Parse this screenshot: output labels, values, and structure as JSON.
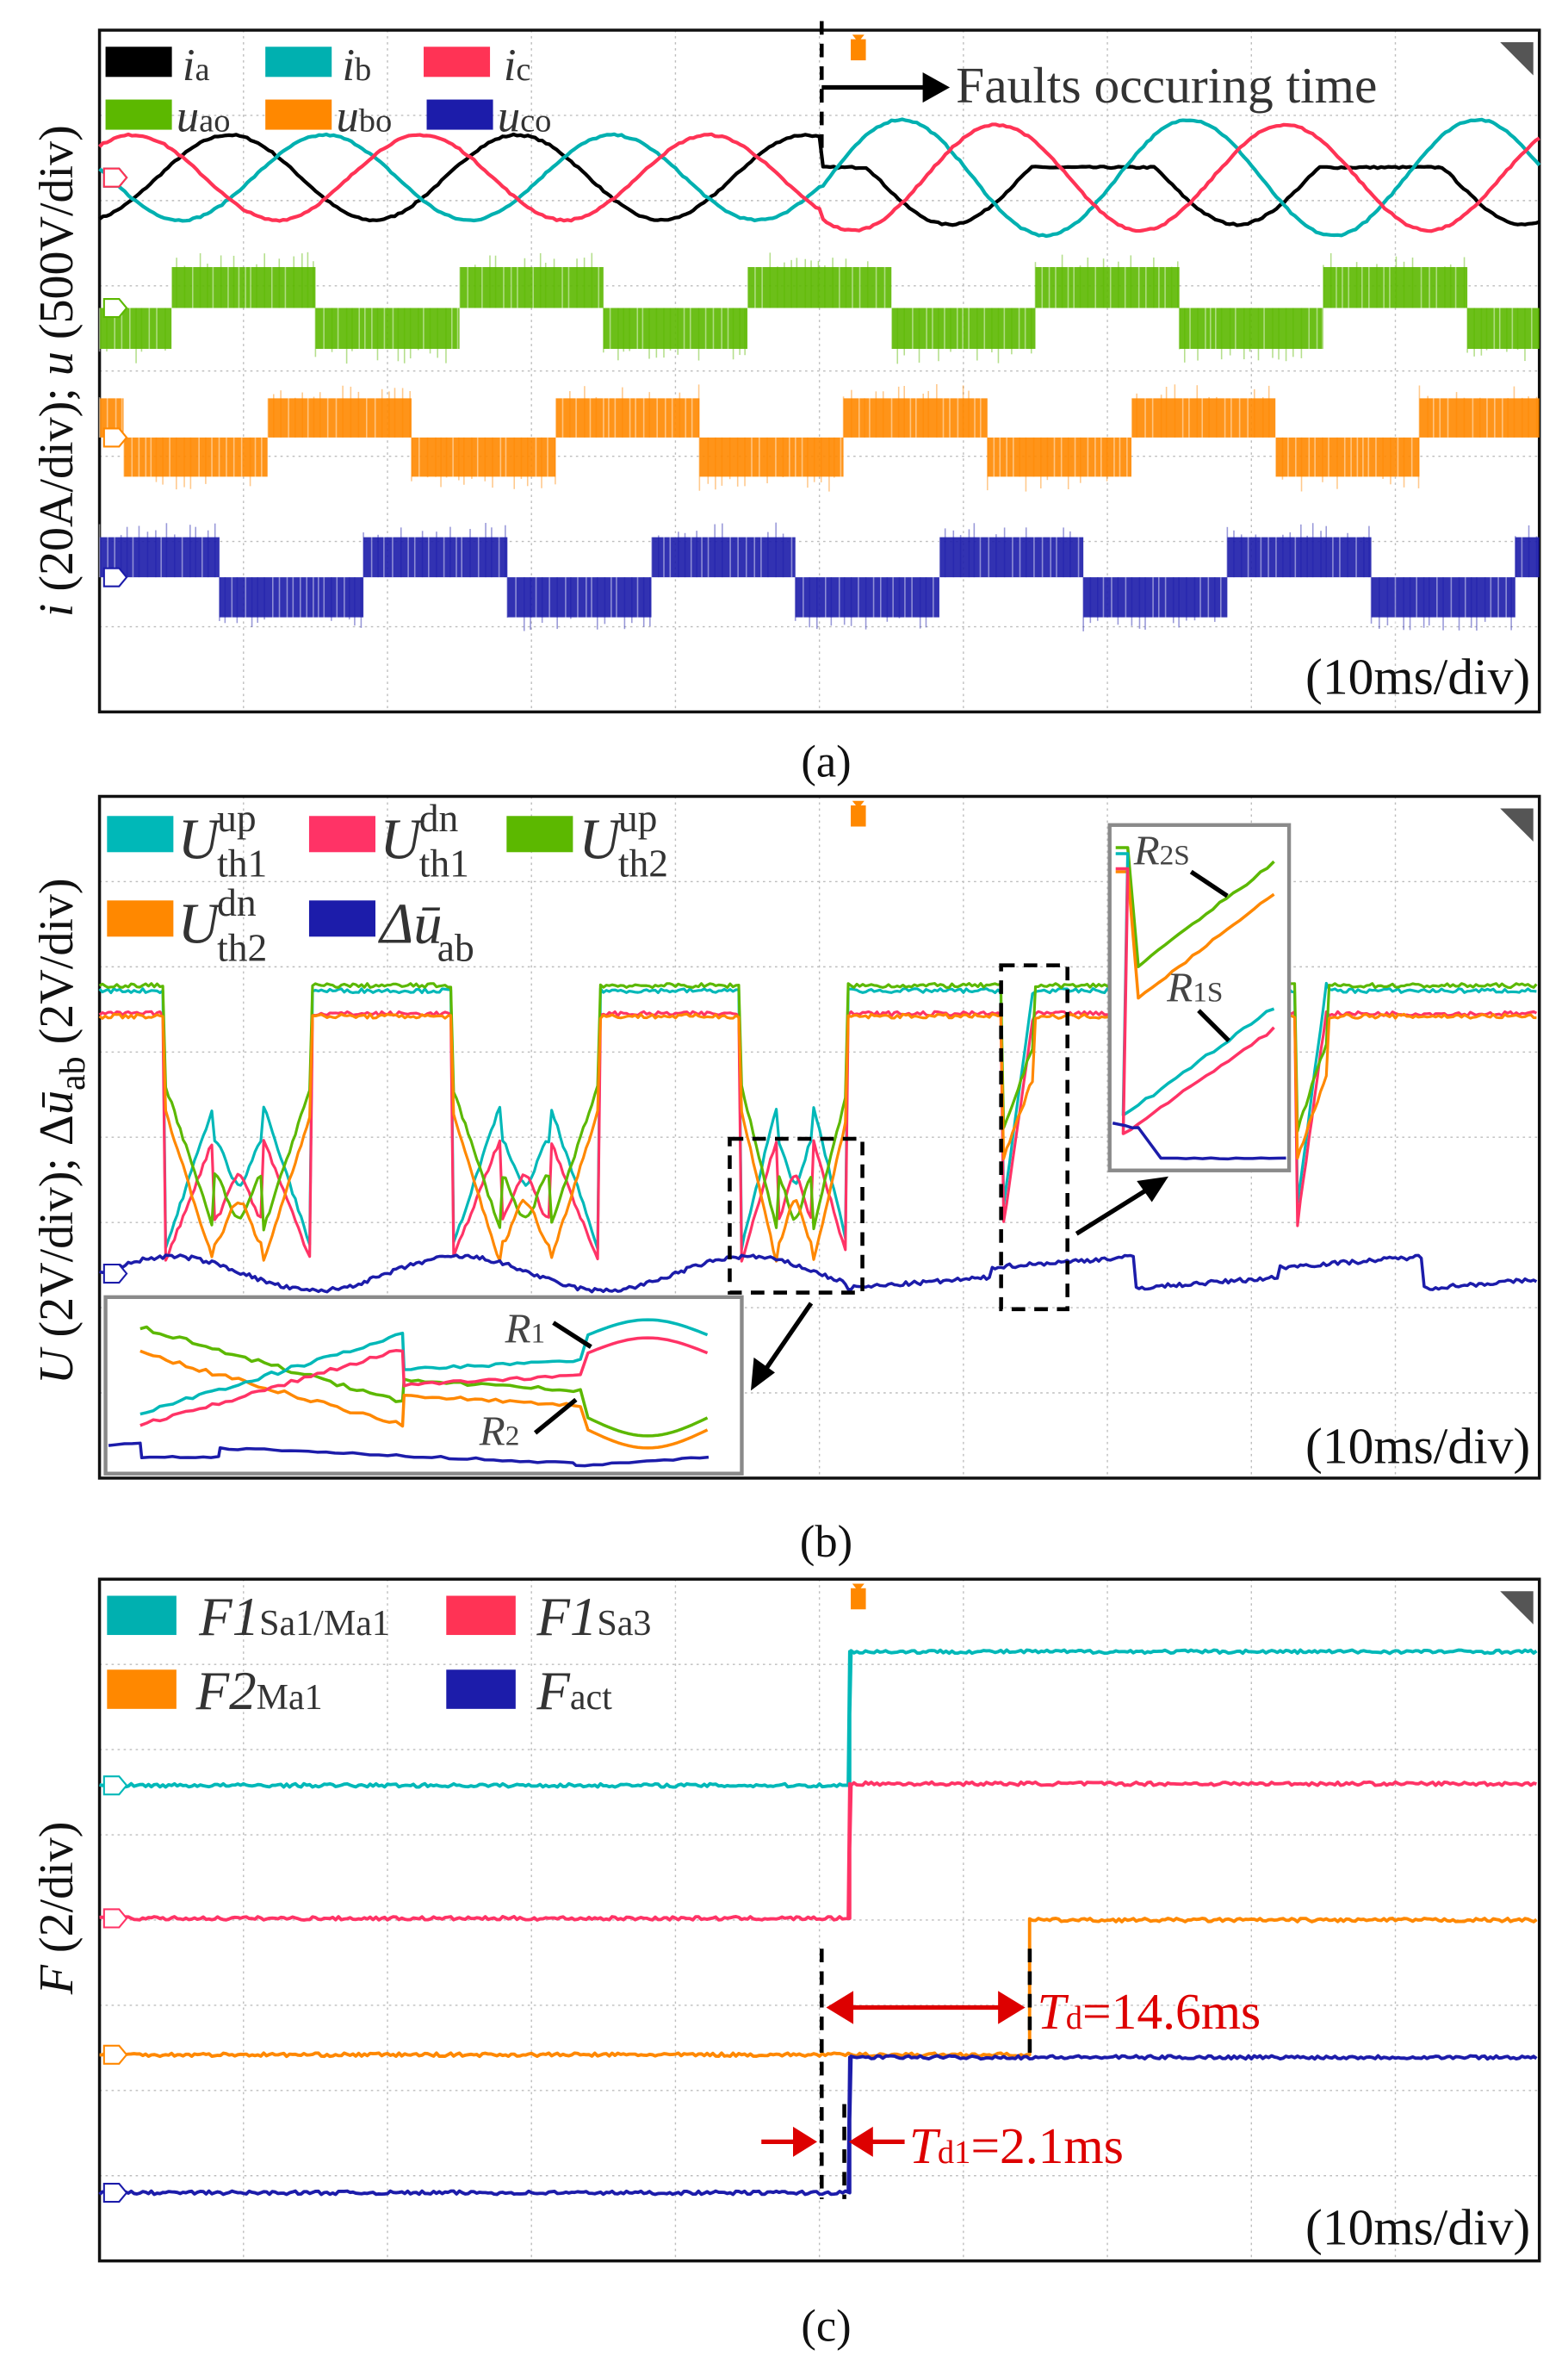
{
  "figure": {
    "captions": [
      "(a)",
      "(b)",
      "(c)"
    ],
    "timebase_label": "(10ms/div)"
  },
  "chart_data": [
    {
      "type": "line",
      "title": "(a)",
      "xlabel": "10ms/div",
      "xlim_ms": [
        0,
        100
      ],
      "ylim_div": [
        0,
        8
      ],
      "grid": true,
      "legend_position": "top-left",
      "ylabel": {
        "sym1": "i",
        "rest1": " (20A/div);  ",
        "sym2": "u",
        "rest2": " (500V/div)"
      },
      "annotation": {
        "text": "Faults occuring time",
        "time_ms": 50
      },
      "fault_time_ms": 50,
      "series": [
        {
          "name": "ia",
          "symbol": "i",
          "sub": "a",
          "color": "#000000",
          "kind": "sine",
          "offset_div": 6.27,
          "amplitude_div": 0.5,
          "period_ms": 20,
          "phase_ms": 4,
          "post_fault_clip_max_div": 0.12,
          "post_fault_amplitude_div": 0.55
        },
        {
          "name": "ib",
          "symbol": "i",
          "sub": "b",
          "color": "#00b0b0",
          "kind": "sine",
          "offset_div": 6.27,
          "amplitude_div": 0.5,
          "period_ms": 20,
          "phase_ms": 10.67,
          "post_fault_amplitude_div": 0.68
        },
        {
          "name": "ic",
          "symbol": "i",
          "sub": "c",
          "color": "#ff3355",
          "kind": "sine",
          "offset_div": 6.27,
          "amplitude_div": 0.5,
          "period_ms": 20,
          "phase_ms": 17.33,
          "post_fault_amplitude_div": 0.62
        },
        {
          "name": "uao",
          "symbol": "u",
          "sub": "ao",
          "color": "#5cb800",
          "kind": "pwm",
          "level_div": 4.74,
          "swing_div": 0.48,
          "period_ms": 20,
          "high_start_ms": 5
        },
        {
          "name": "ubo",
          "symbol": "u",
          "sub": "bo",
          "color": "#ff8800",
          "kind": "pwm",
          "level_div": 3.22,
          "swing_div": 0.46,
          "period_ms": 20,
          "high_start_ms": 11.67
        },
        {
          "name": "uco",
          "symbol": "u",
          "sub": "co",
          "color": "#1c1caa",
          "kind": "pwm",
          "level_div": 1.58,
          "swing_div": 0.47,
          "period_ms": 20,
          "high_start_ms": 18.33
        }
      ]
    },
    {
      "type": "line",
      "title": "(b)",
      "xlabel": "10ms/div",
      "xlim_ms": [
        0,
        100
      ],
      "ylim_div": [
        0,
        8
      ],
      "grid": true,
      "legend_position": "top-left",
      "ylabel": {
        "sym1": "U",
        "rest1": " (2V/div);  Δ",
        "sym2": "ū",
        "sub2": "ab",
        "rest2": " (2V/div)"
      },
      "fault_time_ms": 50,
      "threshold_dips_ms": [
        [
          4.6,
          14.7
        ],
        [
          24.5,
          34.6
        ],
        [
          44.6,
          52.0
        ],
        [
          62.8,
          65.0
        ],
        [
          83.2,
          85.3
        ]
      ],
      "series": [
        {
          "name": "U_th1^up",
          "symbol": "U",
          "sup": "up",
          "sub": "th1",
          "color": "#00b8b8",
          "high_level_div": 5.72
        },
        {
          "name": "U_th1^dn",
          "symbol": "U",
          "sup": "dn",
          "sub": "th1",
          "color": "#ff3366",
          "high_level_div": 5.45
        },
        {
          "name": "U_th2^up",
          "symbol": "U",
          "sup": "up",
          "sub": "th2",
          "color": "#5cb800",
          "high_level_div": 5.78
        },
        {
          "name": "U_th2^dn",
          "symbol": "U",
          "sup": "dn",
          "sub": "th2",
          "color": "#ff8800",
          "high_level_div": 5.42
        },
        {
          "name": "Δū_ab",
          "symbol": "Δū",
          "sup": "",
          "sub": "ab",
          "color": "#1c1caa",
          "level_div": 2.4
        }
      ],
      "zoom_labels": {
        "r1": "R",
        "r1_sub": "1",
        "r2": "R",
        "r2_sub": "2",
        "r1s": "R",
        "r1s_sub": "1S",
        "r2s": "R",
        "r2s_sub": "2S"
      }
    },
    {
      "type": "line",
      "title": "(c)",
      "xlabel": "10ms/div",
      "xlim_ms": [
        0,
        100
      ],
      "ylim_div": [
        0,
        8
      ],
      "grid": true,
      "legend_position": "top-left",
      "ylabel": {
        "sym1": "F",
        "rest1": " (2/div)"
      },
      "fault_time_ms": 50,
      "series": [
        {
          "name": "F1_Sa1/Ma1",
          "symbol": "F1",
          "sub": "Sa1/Ma1",
          "color": "#00b8b8",
          "before_div": 5.58,
          "after_div": 7.15,
          "step_ms": 52.1
        },
        {
          "name": "F1_Sa3",
          "symbol": "F1",
          "sub": "Sa3",
          "color": "#ff3366",
          "before_div": 4.02,
          "after_div": 5.6,
          "step_ms": 52.1
        },
        {
          "name": "F2_Ma1",
          "symbol": "F2",
          "sub": "Ma1",
          "color": "#ff8800",
          "before_div": 2.42,
          "after_div": 4.0,
          "step_ms": 64.6
        },
        {
          "name": "F_act",
          "symbol": "F",
          "sub": "act",
          "color": "#1c1caa",
          "before_div": 0.8,
          "after_div": 2.39,
          "step_ms": 52.1
        }
      ],
      "annotations": [
        {
          "symbol": "T",
          "sub": "d",
          "text": "=14.6ms",
          "from_ms": 50,
          "to_ms": 64.6,
          "color": "#dd0000"
        },
        {
          "symbol": "T",
          "sub": "d1",
          "text": "=2.1ms",
          "from_ms": 50,
          "to_ms": 52.1,
          "color": "#dd0000"
        }
      ]
    }
  ]
}
